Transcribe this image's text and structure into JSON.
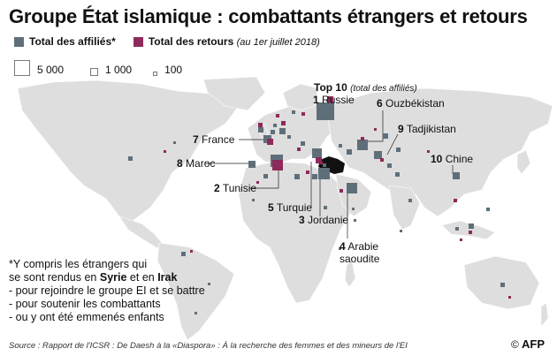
{
  "title": "Groupe État islamique : combattants étrangers et retours",
  "legend": {
    "affiliated_label": "Total des affiliés*",
    "affiliated_color": "#5f6f7a",
    "returns_label": "Total des retours",
    "returns_note": "(au 1er juillet 2018)",
    "returns_color": "#8e2a5b"
  },
  "size_legend": [
    {
      "label": "5 000",
      "value": 5000
    },
    {
      "label": "1 000",
      "value": 1000
    },
    {
      "label": "100",
      "value": 100
    }
  ],
  "top10": {
    "heading": "Top 10",
    "heading_note": "(total des affiliés)",
    "countries": [
      {
        "rank": "1",
        "name": "Russie"
      },
      {
        "rank": "2",
        "name": "Tunisie"
      },
      {
        "rank": "3",
        "name": "Jordanie"
      },
      {
        "rank": "4",
        "name": "Arabie",
        "name2": "saoudite"
      },
      {
        "rank": "5",
        "name": "Turquie"
      },
      {
        "rank": "6",
        "name": "Ouzbékistan"
      },
      {
        "rank": "7",
        "name": "France"
      },
      {
        "rank": "8",
        "name": "Maroc"
      },
      {
        "rank": "9",
        "name": "Tadjikistan"
      },
      {
        "rank": "10",
        "name": "Chine"
      }
    ]
  },
  "note": {
    "line1": "*Y compris les étrangers qui",
    "line2a": "se sont rendus en ",
    "line2b": "Syrie",
    "line2c": " et en ",
    "line2d": "Irak",
    "line3": "- pour rejoindre le groupe EI et se battre",
    "line4": "- pour soutenir les combattants",
    "line5": "- ou y ont été emmenés enfants"
  },
  "source": "Source : Rapport de l'ICSR : De Daesh à la «Diaspora» : À la recherche des femmes et des mineurs de l'EI",
  "credit": "AFP",
  "copyright": "©"
}
